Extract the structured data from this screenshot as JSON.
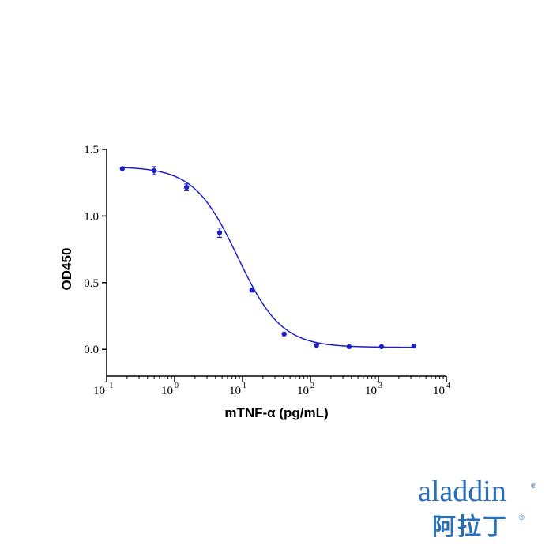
{
  "chart_data": {
    "type": "scatter",
    "xlabel": "mTNF-α (pg/mL)",
    "ylabel": "OD450",
    "x_scale": "log",
    "xlim": [
      0.1,
      10000
    ],
    "ylim": [
      -0.2,
      1.5
    ],
    "y_ticks": [
      "0.0",
      "0.5",
      "1.0",
      "1.5"
    ],
    "x_tick_bases": [
      "10",
      "10",
      "10",
      "10",
      "10",
      "10"
    ],
    "x_tick_exponents": [
      "-1",
      "0",
      "1",
      "2",
      "3",
      "4"
    ],
    "grid": false,
    "legend": "none",
    "series": [
      {
        "x": [
          0.17,
          0.5,
          1.5,
          4.6,
          13.7,
          41,
          123,
          370,
          1111,
          3333
        ],
        "y": [
          1.355,
          1.34,
          1.215,
          0.875,
          0.445,
          0.115,
          0.03,
          0.02,
          0.02,
          0.025
        ],
        "error": [
          0.005,
          0.03,
          0.025,
          0.035,
          0.015,
          0.005,
          0.005,
          0.003,
          0.003,
          0.003
        ]
      }
    ],
    "fit_curve": {
      "model": "4PL",
      "bottom": 0.015,
      "top": 1.37,
      "ec50": 8.5,
      "hill": 1.35
    },
    "colors": {
      "series": "#1f1fc8",
      "axes": "#000000"
    }
  },
  "logo": {
    "wordmark": "aladdin",
    "chinese": "阿拉丁",
    "registered": "®",
    "color": "#2a6fb6",
    "accent": "#e0a21a"
  }
}
